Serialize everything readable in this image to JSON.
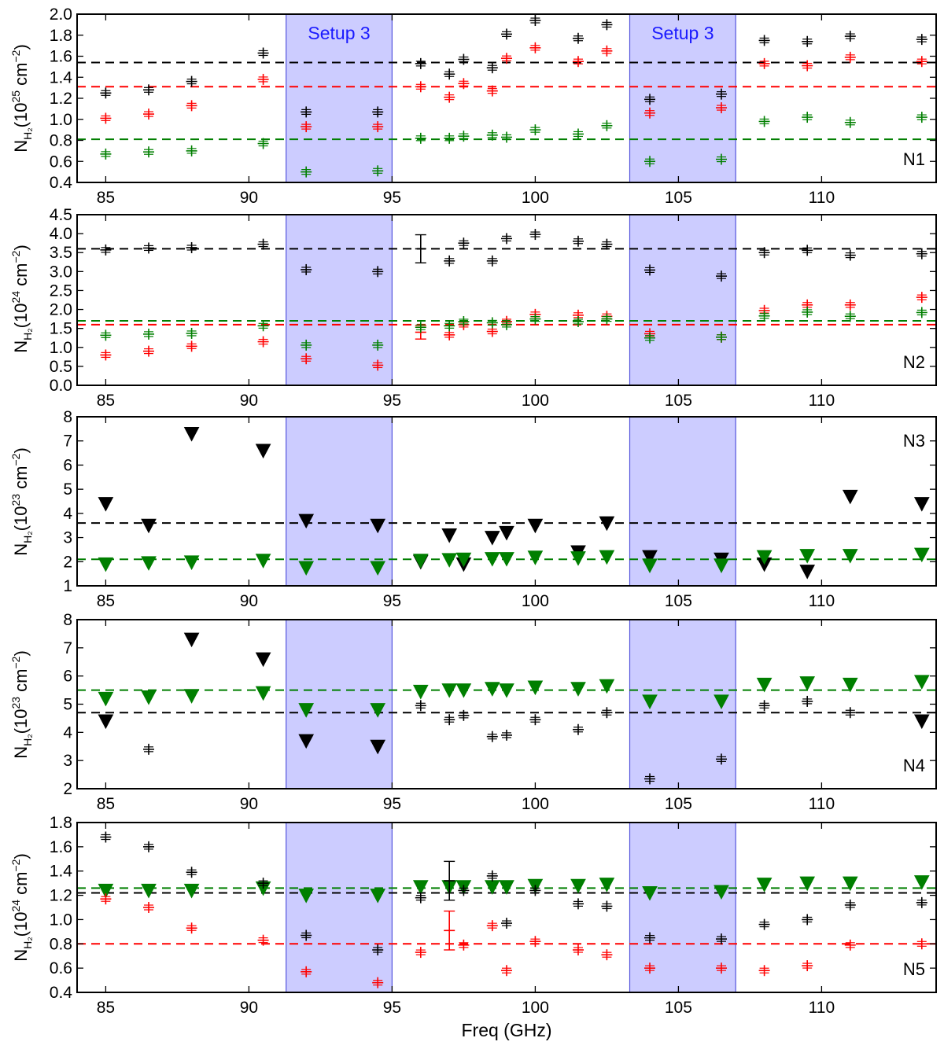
{
  "figure": {
    "xlabel": "Freq (GHz)",
    "xlim": [
      84,
      114
    ],
    "xticks": [
      85,
      90,
      95,
      100,
      105,
      110
    ]
  },
  "colors": {
    "black": "#000000",
    "red": "#ff0000",
    "green": "#007f00",
    "band": "#9999ff",
    "band_edge": "#5555dd",
    "band_text": "#1a1aff"
  },
  "chart_data": [
    {
      "type": "scatter",
      "panel": "N1",
      "ylabel_main": "N",
      "ylabel_sub": "H₂",
      "ylabel_unit_base": "(10",
      "ylabel_exponent": "25",
      "ylabel_unit_rest": " cm",
      "ylabel_unit_exp": "−2",
      "ylabel_close": ")",
      "ylim": [
        0.4,
        2.0
      ],
      "yticks": [
        "0.4",
        "0.6",
        "0.8",
        "1.0",
        "1.2",
        "1.4",
        "1.6",
        "1.8",
        "2.0"
      ],
      "ytick_values": [
        0.4,
        0.6,
        0.8,
        1.0,
        1.2,
        1.4,
        1.6,
        1.8,
        2.0
      ],
      "bands": [
        {
          "from": 91.3,
          "to": 95.0,
          "label": "Setup 3"
        },
        {
          "from": 103.3,
          "to": 107.0,
          "label": "Setup 3"
        }
      ],
      "hlines": [
        {
          "color": "black",
          "y": 1.54
        },
        {
          "color": "red",
          "y": 1.31
        },
        {
          "color": "green",
          "y": 0.81
        }
      ],
      "series": [
        {
          "name": "black",
          "color": "black",
          "marker": "plus",
          "x": [
            85.0,
            86.5,
            88.0,
            90.5,
            92.0,
            94.5,
            96.0,
            97.0,
            97.5,
            98.5,
            99.0,
            100.0,
            101.5,
            102.5,
            104.0,
            106.5,
            108.0,
            109.5,
            111.0,
            113.5
          ],
          "y": [
            1.25,
            1.28,
            1.36,
            1.63,
            1.07,
            1.07,
            1.53,
            1.43,
            1.57,
            1.49,
            1.81,
            1.94,
            1.77,
            1.9,
            1.19,
            1.24,
            1.75,
            1.74,
            1.79,
            1.76
          ]
        },
        {
          "name": "red",
          "color": "red",
          "marker": "plus",
          "x": [
            85.0,
            86.5,
            88.0,
            90.5,
            92.0,
            94.5,
            96.0,
            97.0,
            97.5,
            98.5,
            99.0,
            100.0,
            101.5,
            102.5,
            104.0,
            106.5,
            108.0,
            109.5,
            111.0,
            113.5
          ],
          "y": [
            1.01,
            1.05,
            1.13,
            1.38,
            0.93,
            0.93,
            1.31,
            1.21,
            1.34,
            1.27,
            1.58,
            1.68,
            1.55,
            1.65,
            1.06,
            1.11,
            1.53,
            1.51,
            1.59,
            1.55
          ]
        },
        {
          "name": "green",
          "color": "green",
          "marker": "plus",
          "x": [
            85.0,
            86.5,
            88.0,
            90.5,
            92.0,
            94.5,
            96.0,
            97.0,
            97.5,
            98.5,
            99.0,
            100.0,
            101.5,
            102.5,
            104.0,
            106.5,
            108.0,
            109.5,
            111.0,
            113.5
          ],
          "y": [
            0.67,
            0.69,
            0.7,
            0.77,
            0.5,
            0.51,
            0.82,
            0.82,
            0.84,
            0.85,
            0.83,
            0.9,
            0.86,
            0.94,
            0.6,
            0.62,
            0.98,
            1.02,
            0.97,
            1.02
          ]
        }
      ]
    },
    {
      "type": "scatter",
      "panel": "N2",
      "ylabel_main": "N",
      "ylabel_sub": "H₂",
      "ylabel_unit_base": "(10",
      "ylabel_exponent": "24",
      "ylabel_unit_rest": " cm",
      "ylabel_unit_exp": "−2",
      "ylabel_close": ")",
      "ylim": [
        0.0,
        4.5
      ],
      "yticks": [
        "0.0",
        "0.5",
        "1.0",
        "1.5",
        "2.0",
        "2.5",
        "3.0",
        "3.5",
        "4.0",
        "4.5"
      ],
      "ytick_values": [
        0.0,
        0.5,
        1.0,
        1.5,
        2.0,
        2.5,
        3.0,
        3.5,
        4.0,
        4.5
      ],
      "bands": [
        {
          "from": 91.3,
          "to": 95.0,
          "label": ""
        },
        {
          "from": 103.3,
          "to": 107.0,
          "label": ""
        }
      ],
      "hlines": [
        {
          "color": "black",
          "y": 3.6
        },
        {
          "color": "green",
          "y": 1.7
        },
        {
          "color": "red",
          "y": 1.6
        }
      ],
      "series": [
        {
          "name": "black",
          "color": "black",
          "marker": "plus",
          "x": [
            85.0,
            86.5,
            88.0,
            90.5,
            92.0,
            94.5,
            96.0,
            97.0,
            97.5,
            98.5,
            99.0,
            100.0,
            101.5,
            102.5,
            104.0,
            106.5,
            108.0,
            109.5,
            111.0,
            113.5
          ],
          "y": [
            3.57,
            3.62,
            3.63,
            3.72,
            3.05,
            3.0,
            3.6,
            3.28,
            3.75,
            3.28,
            3.87,
            3.98,
            3.8,
            3.72,
            3.04,
            2.88,
            3.5,
            3.56,
            3.43,
            3.47
          ],
          "err": [
            0.05,
            0.05,
            0.05,
            0.05,
            0.06,
            0.06,
            0.37,
            0.08,
            0.05,
            0.06,
            0.06,
            0.04,
            0.12,
            0.06,
            0.06,
            0.05,
            0.08,
            0.04,
            0.08,
            0.06
          ]
        },
        {
          "name": "red",
          "color": "red",
          "marker": "plus",
          "x": [
            85.0,
            86.5,
            88.0,
            90.5,
            92.0,
            94.5,
            96.0,
            97.0,
            97.5,
            98.5,
            99.0,
            100.0,
            101.5,
            102.5,
            104.0,
            106.5,
            108.0,
            109.5,
            111.0,
            113.5
          ],
          "y": [
            0.8,
            0.9,
            1.03,
            1.15,
            0.7,
            0.53,
            1.4,
            1.33,
            1.6,
            1.42,
            1.68,
            1.87,
            1.85,
            1.82,
            1.36,
            1.27,
            1.97,
            2.12,
            2.12,
            2.32
          ],
          "err": [
            0.1,
            0.1,
            0.1,
            0.1,
            0.07,
            0.07,
            0.18,
            0.12,
            0.12,
            0.12,
            0.15,
            0.1,
            0.1,
            0.12,
            0.1,
            0.06,
            0.15,
            0.12,
            0.12,
            0.1
          ]
        },
        {
          "name": "green",
          "color": "green",
          "marker": "plus",
          "x": [
            85.0,
            86.5,
            88.0,
            90.5,
            92.0,
            94.5,
            96.0,
            97.0,
            97.5,
            98.5,
            99.0,
            100.0,
            101.5,
            102.5,
            104.0,
            106.5,
            108.0,
            109.5,
            111.0,
            113.5
          ],
          "y": [
            1.32,
            1.35,
            1.37,
            1.57,
            1.06,
            1.06,
            1.53,
            1.57,
            1.68,
            1.65,
            1.6,
            1.75,
            1.68,
            1.75,
            1.25,
            1.27,
            1.83,
            1.93,
            1.82,
            1.92
          ],
          "err": [
            0.08,
            0.08,
            0.08,
            0.08,
            0.06,
            0.06,
            0.08,
            0.06,
            0.06,
            0.06,
            0.06,
            0.06,
            0.06,
            0.06,
            0.06,
            0.06,
            0.1,
            0.1,
            0.1,
            0.1
          ]
        }
      ]
    },
    {
      "type": "scatter",
      "panel": "N3",
      "ylabel_main": "N",
      "ylabel_sub": "H₂",
      "ylabel_unit_base": "(10",
      "ylabel_exponent": "23",
      "ylabel_unit_rest": " cm",
      "ylabel_unit_exp": "−2",
      "ylabel_close": ")",
      "ylim": [
        1,
        8
      ],
      "yticks": [
        "1",
        "2",
        "3",
        "4",
        "5",
        "6",
        "7",
        "8"
      ],
      "ytick_values": [
        1,
        2,
        3,
        4,
        5,
        6,
        7,
        8
      ],
      "bands": [
        {
          "from": 91.3,
          "to": 95.0,
          "label": ""
        },
        {
          "from": 103.3,
          "to": 107.0,
          "label": ""
        }
      ],
      "hlines": [
        {
          "color": "black",
          "y": 3.6
        },
        {
          "color": "green",
          "y": 2.1
        }
      ],
      "series": [
        {
          "name": "black",
          "color": "black",
          "marker": "triangle",
          "x": [
            85.0,
            86.5,
            88.0,
            90.5,
            92.0,
            94.5,
            96.0,
            97.0,
            97.5,
            98.5,
            99.0,
            100.0,
            101.5,
            102.5,
            104.0,
            106.5,
            108.0,
            109.5,
            111.0,
            113.5
          ],
          "y": [
            4.4,
            3.5,
            7.3,
            6.6,
            3.7,
            3.5,
            2.0,
            3.1,
            1.9,
            3.0,
            3.2,
            3.5,
            2.4,
            3.6,
            2.2,
            2.1,
            1.9,
            1.6,
            4.7,
            4.4
          ]
        },
        {
          "name": "green",
          "color": "green",
          "marker": "triangle",
          "x": [
            85.0,
            86.5,
            88.0,
            90.5,
            92.0,
            94.5,
            96.0,
            97.0,
            97.5,
            98.5,
            99.0,
            100.0,
            101.5,
            102.5,
            104.0,
            106.5,
            108.0,
            109.5,
            111.0,
            113.5
          ],
          "y": [
            1.9,
            1.95,
            1.98,
            2.05,
            1.75,
            1.75,
            2.05,
            2.08,
            2.1,
            2.12,
            2.12,
            2.18,
            2.15,
            2.2,
            1.85,
            1.85,
            2.2,
            2.25,
            2.25,
            2.3
          ]
        }
      ]
    },
    {
      "type": "scatter",
      "panel": "N4",
      "ylabel_main": "N",
      "ylabel_sub": "H₂",
      "ylabel_unit_base": "(10",
      "ylabel_exponent": "23",
      "ylabel_unit_rest": " cm",
      "ylabel_unit_exp": "−2",
      "ylabel_close": ")",
      "ylim": [
        2,
        8
      ],
      "yticks": [
        "2",
        "3",
        "4",
        "5",
        "6",
        "7",
        "8"
      ],
      "ytick_values": [
        2,
        3,
        4,
        5,
        6,
        7,
        8
      ],
      "bands": [
        {
          "from": 91.3,
          "to": 95.0,
          "label": ""
        },
        {
          "from": 103.3,
          "to": 107.0,
          "label": ""
        }
      ],
      "hlines": [
        {
          "color": "green",
          "y": 5.5
        },
        {
          "color": "black",
          "y": 4.7
        }
      ],
      "series": [
        {
          "name": "green",
          "color": "green",
          "marker": "triangle",
          "x": [
            85.0,
            86.5,
            88.0,
            90.5,
            92.0,
            94.5,
            96.0,
            97.0,
            97.5,
            98.5,
            99.0,
            100.0,
            101.5,
            102.5,
            104.0,
            106.5,
            108.0,
            109.5,
            111.0,
            113.5
          ],
          "y": [
            5.2,
            5.25,
            5.3,
            5.4,
            4.8,
            4.8,
            5.45,
            5.5,
            5.5,
            5.55,
            5.5,
            5.6,
            5.55,
            5.65,
            5.1,
            5.1,
            5.7,
            5.75,
            5.7,
            5.8
          ]
        },
        {
          "name": "black-upper",
          "color": "black",
          "marker": "triangle",
          "x": [
            85.0,
            88.0,
            90.5,
            92.0,
            94.5,
            113.5
          ],
          "y": [
            4.4,
            7.3,
            6.6,
            3.7,
            3.5,
            4.4
          ]
        },
        {
          "name": "black-detected",
          "color": "black",
          "marker": "plus",
          "x": [
            86.5,
            96.0,
            97.0,
            97.5,
            98.5,
            99.0,
            100.0,
            101.5,
            102.5,
            104.0,
            106.5,
            108.0,
            109.5,
            111.0
          ],
          "y": [
            3.4,
            4.95,
            4.45,
            4.6,
            3.85,
            3.9,
            4.45,
            4.1,
            4.7,
            2.35,
            3.05,
            4.95,
            5.1,
            4.7
          ],
          "err": [
            0.1,
            0.1,
            0.1,
            0.08,
            0.1,
            0.1,
            0.08,
            0.1,
            0.12,
            0.08,
            0.08,
            0.12,
            0.06,
            0.06
          ]
        }
      ]
    },
    {
      "type": "scatter",
      "panel": "N5",
      "ylabel_main": "N",
      "ylabel_sub": "H₂",
      "ylabel_unit_base": "(10",
      "ylabel_exponent": "24",
      "ylabel_unit_rest": " cm",
      "ylabel_unit_exp": "−2",
      "ylabel_close": ")",
      "ylim": [
        0.4,
        1.8
      ],
      "yticks": [
        "0.4",
        "0.6",
        "0.8",
        "1.0",
        "1.2",
        "1.4",
        "1.6",
        "1.8"
      ],
      "ytick_values": [
        0.4,
        0.6,
        0.8,
        1.0,
        1.2,
        1.4,
        1.6,
        1.8
      ],
      "bands": [
        {
          "from": 91.3,
          "to": 95.0,
          "label": ""
        },
        {
          "from": 103.3,
          "to": 107.0,
          "label": ""
        }
      ],
      "hlines": [
        {
          "color": "green",
          "y": 1.26
        },
        {
          "color": "black",
          "y": 1.22
        },
        {
          "color": "red",
          "y": 0.8
        }
      ],
      "series": [
        {
          "name": "green",
          "color": "green",
          "marker": "triangle",
          "x": [
            85.0,
            86.5,
            88.0,
            90.5,
            92.0,
            94.5,
            96.0,
            97.0,
            97.5,
            98.5,
            99.0,
            100.0,
            101.5,
            102.5,
            104.0,
            106.5,
            108.0,
            109.5,
            111.0,
            113.5
          ],
          "y": [
            1.24,
            1.24,
            1.24,
            1.26,
            1.2,
            1.2,
            1.27,
            1.27,
            1.27,
            1.27,
            1.27,
            1.28,
            1.28,
            1.29,
            1.22,
            1.23,
            1.29,
            1.3,
            1.3,
            1.31
          ]
        },
        {
          "name": "black",
          "color": "black",
          "marker": "plus",
          "x": [
            85.0,
            86.5,
            88.0,
            90.5,
            92.0,
            94.5,
            96.0,
            97.0,
            97.5,
            98.5,
            99.0,
            100.0,
            101.5,
            102.5,
            104.0,
            106.5,
            108.0,
            109.5,
            111.0,
            113.5
          ],
          "y": [
            1.68,
            1.6,
            1.39,
            1.3,
            0.87,
            0.75,
            1.18,
            1.32,
            1.24,
            1.36,
            0.97,
            1.24,
            1.13,
            1.11,
            0.85,
            0.84,
            0.96,
            1.0,
            1.12,
            1.14
          ],
          "err": [
            0.03,
            0.02,
            0.03,
            0.02,
            0.02,
            0.02,
            0.02,
            0.16,
            0.02,
            0.03,
            0.03,
            0.02,
            0.03,
            0.03,
            0.02,
            0.01,
            0.03,
            0.02,
            0.03,
            0.02
          ]
        },
        {
          "name": "red",
          "color": "red",
          "marker": "plus",
          "x": [
            85.0,
            86.5,
            88.0,
            90.5,
            92.0,
            94.5,
            96.0,
            97.0,
            97.5,
            98.5,
            99.0,
            100.0,
            101.5,
            102.5,
            104.0,
            106.5,
            108.0,
            109.5,
            111.0,
            113.5
          ],
          "y": [
            1.17,
            1.1,
            0.93,
            0.83,
            0.57,
            0.48,
            0.73,
            0.91,
            0.79,
            0.95,
            0.58,
            0.82,
            0.75,
            0.71,
            0.6,
            0.6,
            0.58,
            0.62,
            0.79,
            0.8
          ],
          "err": [
            0.02,
            0.02,
            0.02,
            0.01,
            0.02,
            0.02,
            0.02,
            0.16,
            0.02,
            0.02,
            0.02,
            0.01,
            0.02,
            0.02,
            0.02,
            0.02,
            0.02,
            0.02,
            0.02,
            0.01
          ]
        }
      ]
    }
  ]
}
